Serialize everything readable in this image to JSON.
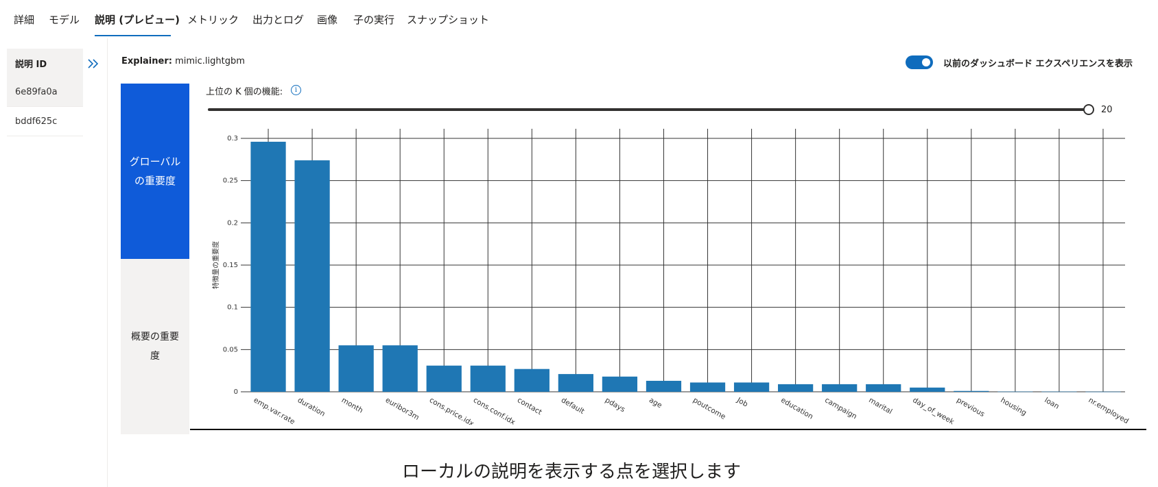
{
  "tabs": [
    {
      "label": "詳細",
      "active": false
    },
    {
      "label": "モデル",
      "active": false
    },
    {
      "label": "説明 (プレビュー)",
      "active": true
    },
    {
      "label": "メトリック",
      "active": false
    },
    {
      "label": "出力とログ",
      "active": false
    },
    {
      "label": "画像",
      "active": false
    },
    {
      "label": "子の実行",
      "active": false
    },
    {
      "label": "スナップショット",
      "active": false
    }
  ],
  "explanations": {
    "header": "説明 ID",
    "items": [
      "6e89fa0a",
      "bddf625c"
    ]
  },
  "explainer": {
    "label": "Explainer:",
    "value": "mimic.lightgbm"
  },
  "toggle": {
    "label": "以前のダッシュボード エクスペリエンスを表示",
    "on": true
  },
  "pivots": {
    "global": "グローバルの重要度",
    "summary": "概要の重要度"
  },
  "topk": {
    "label": "上位の K 個の機能:",
    "value": "20",
    "fraction": 1.0
  },
  "colors": {
    "accent": "#0f5bd9",
    "bar": "#1f77b4"
  },
  "local_message": "ローカルの説明を表示する点を選択します",
  "chart_data": {
    "type": "bar",
    "ylabel": "特徴量の重要度",
    "xlabel": "",
    "ylim": [
      0,
      0.3
    ],
    "yticks": [
      {
        "value": 0,
        "label": "0"
      },
      {
        "value": 0.05,
        "label": "0.05"
      },
      {
        "value": 0.1,
        "label": "0.1"
      },
      {
        "value": 0.15,
        "label": "0.15"
      },
      {
        "value": 0.2,
        "label": "0.2"
      },
      {
        "value": 0.25,
        "label": "0.25"
      },
      {
        "value": 0.3,
        "label": "0.3"
      }
    ],
    "grid": true,
    "categories": [
      "emp.var.rate",
      "duration",
      "month",
      "euribor3m",
      "cons.price.idx",
      "cons.conf.idx",
      "contact",
      "default",
      "pdays",
      "age",
      "poutcome",
      "Job",
      "education",
      "campaign",
      "marital",
      "day_of_week",
      "previous",
      "housing",
      "loan",
      "nr.employed"
    ],
    "values": [
      0.296,
      0.274,
      0.055,
      0.055,
      0.031,
      0.031,
      0.027,
      0.021,
      0.018,
      0.013,
      0.011,
      0.011,
      0.009,
      0.009,
      0.009,
      0.005,
      0.001,
      0.0003,
      0.0003,
      0.0002
    ]
  }
}
